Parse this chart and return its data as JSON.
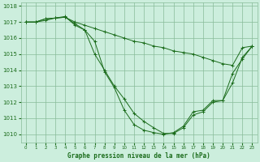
{
  "title": "Graphe pression niveau de la mer (hPa)",
  "bg_color": "#cceedd",
  "grid_color": "#88bb99",
  "line_color": "#1a6b1a",
  "marker_color": "#1a6b1a",
  "xlim": [
    -0.5,
    23.5
  ],
  "ylim": [
    1009.5,
    1018.2
  ],
  "yticks": [
    1010,
    1011,
    1012,
    1013,
    1014,
    1015,
    1016,
    1017,
    1018
  ],
  "xticks": [
    0,
    1,
    2,
    3,
    4,
    5,
    6,
    7,
    8,
    9,
    10,
    11,
    12,
    13,
    14,
    15,
    16,
    17,
    18,
    19,
    20,
    21,
    22,
    23
  ],
  "series": [
    {
      "x": [
        0,
        1,
        2,
        3,
        4,
        5,
        6,
        7,
        8,
        9,
        10,
        11,
        12,
        13,
        14,
        15,
        16,
        17,
        18,
        19,
        20,
        21,
        22,
        23
      ],
      "y": [
        1017.0,
        1017.0,
        1017.2,
        1017.25,
        1017.3,
        1017.0,
        1016.8,
        1016.6,
        1016.4,
        1016.2,
        1016.0,
        1015.8,
        1015.7,
        1015.5,
        1015.4,
        1015.2,
        1015.1,
        1015.0,
        1014.8,
        1014.6,
        1014.4,
        1014.3,
        1015.4,
        1015.5
      ]
    },
    {
      "x": [
        0,
        1,
        2,
        3,
        4,
        5,
        6,
        7,
        8,
        9,
        10,
        11,
        12,
        13,
        14,
        15,
        16,
        17,
        18,
        19,
        20,
        21,
        22,
        23
      ],
      "y": [
        1017.0,
        1017.0,
        1017.2,
        1017.25,
        1017.35,
        1016.8,
        1016.5,
        1015.0,
        1014.0,
        1013.0,
        1012.2,
        1011.3,
        1010.8,
        1010.4,
        1010.05,
        1010.05,
        1010.4,
        1011.2,
        1011.4,
        1012.0,
        1012.1,
        1013.2,
        1014.8,
        1015.5
      ]
    },
    {
      "x": [
        0,
        1,
        2,
        3,
        4,
        5,
        6,
        7,
        8,
        9,
        10,
        11,
        12,
        13,
        14,
        15,
        16,
        17,
        18,
        19,
        20,
        21,
        22,
        23
      ],
      "y": [
        1017.0,
        1017.0,
        1017.1,
        1017.25,
        1017.3,
        1016.9,
        1016.5,
        1015.8,
        1013.9,
        1012.9,
        1011.5,
        1010.6,
        1010.25,
        1010.1,
        1010.0,
        1010.1,
        1010.5,
        1011.4,
        1011.5,
        1012.1,
        1012.1,
        1013.8,
        1014.7,
        1015.5
      ]
    }
  ]
}
